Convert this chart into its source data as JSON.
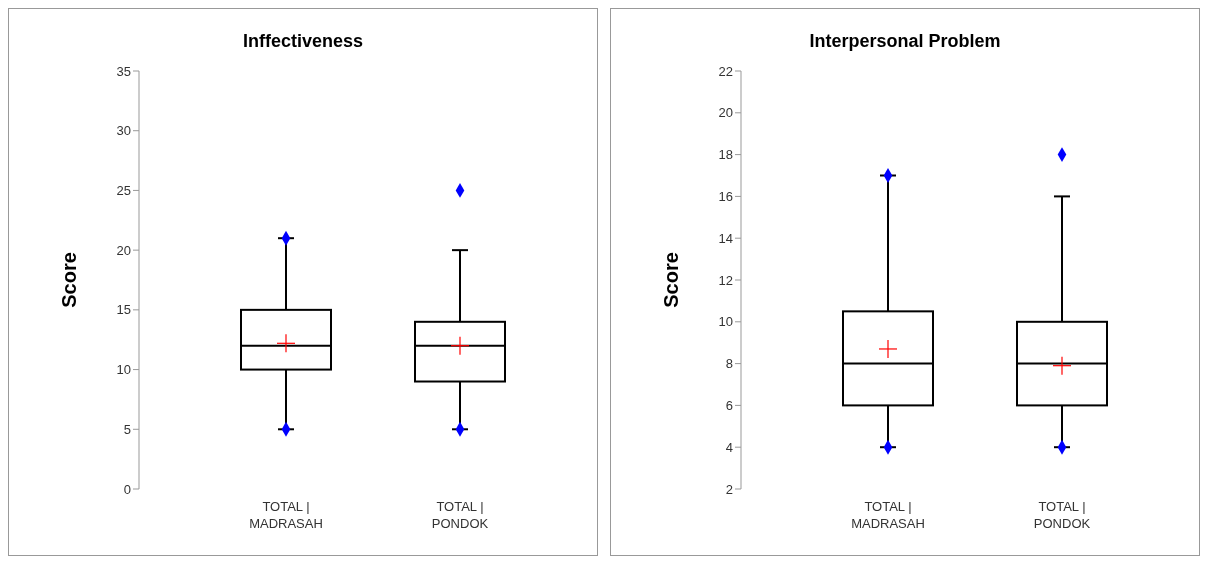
{
  "chart_data": [
    {
      "type": "box",
      "title": "Inffectiveness",
      "ylabel": "Score",
      "categories": [
        "TOTAL |\nMADRASAH",
        "TOTAL |\nPONDOK"
      ],
      "ylim": [
        0,
        35
      ],
      "yticks": [
        0,
        5,
        10,
        15,
        20,
        25,
        30,
        35
      ],
      "grid": false,
      "legend": false,
      "boxes": [
        {
          "low": 5,
          "q1": 10,
          "median": 12,
          "q3": 15,
          "high": 21,
          "mean": 12.2
        },
        {
          "low": 5,
          "q1": 9,
          "median": 12,
          "q3": 14,
          "high": 20,
          "mean": 12
        }
      ],
      "series": [
        {
          "type": "scatter",
          "color": "#0000ff",
          "marker": "diamond",
          "x": [
            "TOTAL |\nMADRASAH",
            "TOTAL |\nMADRASAH",
            "TOTAL |\nPONDOK",
            "TOTAL |\nPONDOK"
          ],
          "values": [
            5,
            21,
            5,
            25
          ]
        }
      ]
    },
    {
      "type": "box",
      "title": "Interpersonal Problem",
      "ylabel": "Score",
      "categories": [
        "TOTAL |\nMADRASAH",
        "TOTAL |\nPONDOK"
      ],
      "ylim": [
        2,
        22
      ],
      "yticks": [
        2,
        4,
        6,
        8,
        10,
        12,
        14,
        16,
        18,
        20,
        22
      ],
      "grid": false,
      "legend": false,
      "boxes": [
        {
          "low": 4,
          "q1": 6,
          "median": 8,
          "q3": 10.5,
          "high": 17,
          "mean": 8.7
        },
        {
          "low": 4,
          "q1": 6,
          "median": 8,
          "q3": 10,
          "high": 16,
          "mean": 7.9
        }
      ],
      "series": [
        {
          "type": "scatter",
          "color": "#0000ff",
          "marker": "diamond",
          "x": [
            "TOTAL |\nMADRASAH",
            "TOTAL |\nMADRASAH",
            "TOTAL |\nPONDOK",
            "TOTAL |\nPONDOK"
          ],
          "values": [
            4,
            17,
            4,
            18
          ]
        }
      ]
    }
  ]
}
